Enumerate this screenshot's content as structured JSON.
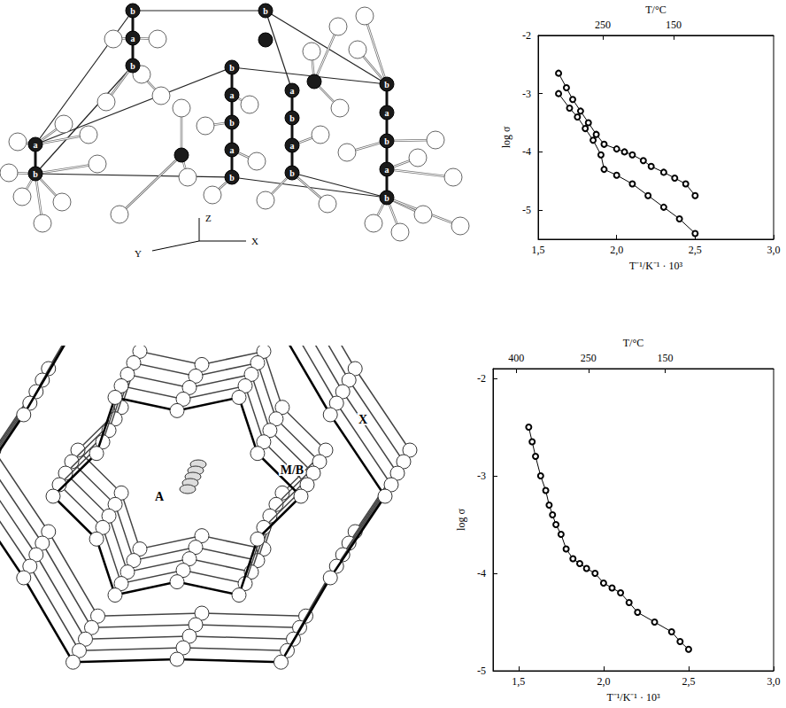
{
  "diagrams": [
    {
      "columns": [
        [
          "b",
          "a",
          "b"
        ],
        [
          "a",
          "b"
        ],
        [
          "b",
          "a",
          "b",
          "a",
          "b"
        ],
        [
          "b"
        ],
        [
          "a",
          "b",
          "a",
          "b"
        ],
        [
          "b",
          "a",
          "b",
          "a",
          "b"
        ]
      ],
      "axes": [
        "Y",
        "Z",
        "X"
      ]
    },
    {
      "labels": [
        "A",
        "M/B",
        "X"
      ]
    }
  ],
  "chart_data": [
    {
      "type": "line",
      "x_label": "T⁻¹/K⁻¹ · 10³",
      "y_label": "log σ",
      "x2_label": "T/°C",
      "xlim": [
        1.5,
        3.0
      ],
      "xticks": [
        {
          "value": 1.5,
          "label": "1,5"
        },
        {
          "value": 2.0,
          "label": "2,0"
        },
        {
          "value": 2.5,
          "label": "2,5"
        },
        {
          "value": 3.0,
          "label": "3,0"
        }
      ],
      "x2ticks": [
        {
          "value": 1.911,
          "label": "250"
        },
        {
          "value": 2.363,
          "label": "150"
        }
      ],
      "ylim": [
        -5.5,
        -2
      ],
      "yticks": [
        -5,
        -4,
        -3,
        -2
      ],
      "grid": false,
      "series": [
        {
          "color": "#000000",
          "marker": "circle",
          "x": [
            1.63,
            1.68,
            1.72,
            1.77,
            1.82,
            1.87,
            1.92,
            2.0,
            2.05,
            2.1,
            2.17,
            2.22,
            2.3,
            2.37,
            2.44,
            2.5
          ],
          "values": [
            -2.65,
            -2.9,
            -3.1,
            -3.3,
            -3.5,
            -3.7,
            -3.87,
            -3.95,
            -4.0,
            -4.05,
            -4.15,
            -4.25,
            -4.35,
            -4.45,
            -4.55,
            -4.75
          ]
        },
        {
          "color": "#000000",
          "marker": "circle",
          "x": [
            1.63,
            1.7,
            1.75,
            1.8,
            1.85,
            1.9,
            1.92,
            2.0,
            2.1,
            2.2,
            2.3,
            2.4,
            2.5
          ],
          "values": [
            -3.0,
            -3.25,
            -3.4,
            -3.6,
            -3.8,
            -4.05,
            -4.3,
            -4.4,
            -4.55,
            -4.75,
            -4.95,
            -5.15,
            -5.4
          ]
        }
      ]
    },
    {
      "type": "line",
      "x_label": "T⁻¹/K⁻¹ · 10³",
      "y_label": "log σ",
      "x2_label": "T/°C",
      "xlim": [
        1.35,
        3.0
      ],
      "xticks": [
        {
          "value": 1.5,
          "label": "1,5"
        },
        {
          "value": 2.0,
          "label": "2,0"
        },
        {
          "value": 2.5,
          "label": "2,5"
        },
        {
          "value": 3.0,
          "label": "3,0"
        }
      ],
      "x2ticks": [
        {
          "value": 1.486,
          "label": "400"
        },
        {
          "value": 1.911,
          "label": "250"
        },
        {
          "value": 2.363,
          "label": "150"
        }
      ],
      "ylim": [
        -5,
        -1.9
      ],
      "yticks": [
        -5,
        -4,
        -3,
        -2
      ],
      "grid": false,
      "series": [
        {
          "color": "#000000",
          "marker": "circle",
          "x": [
            1.56,
            1.58,
            1.6,
            1.63,
            1.66,
            1.68,
            1.7,
            1.72,
            1.75,
            1.78,
            1.82,
            1.86,
            1.9,
            1.95,
            2.0,
            2.05,
            2.1,
            2.15,
            2.2,
            2.3,
            2.4,
            2.45,
            2.5
          ],
          "values": [
            -2.5,
            -2.65,
            -2.8,
            -3.0,
            -3.15,
            -3.3,
            -3.4,
            -3.5,
            -3.6,
            -3.75,
            -3.85,
            -3.9,
            -3.95,
            -4.0,
            -4.1,
            -4.15,
            -4.2,
            -4.3,
            -4.4,
            -4.5,
            -4.6,
            -4.7,
            -4.78
          ]
        }
      ]
    }
  ]
}
